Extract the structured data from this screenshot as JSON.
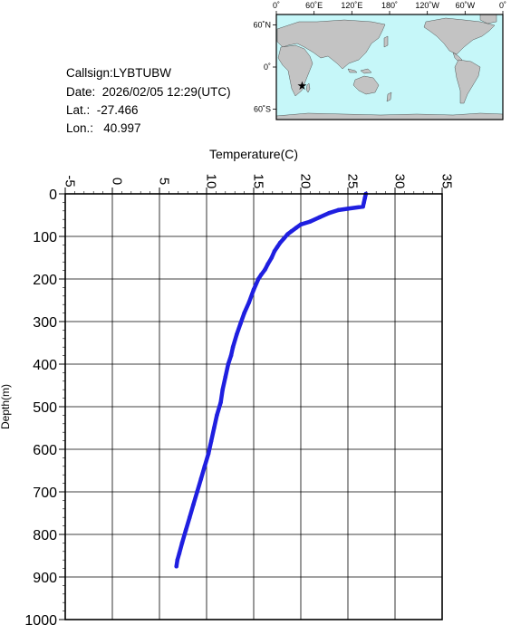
{
  "header": {
    "callsign": "Callsign:LYBTUBW",
    "date": "Date:  2026/02/05 12:29(UTC)",
    "lat": "Lat.:  -27.466",
    "lon": "Lon.:   40.997"
  },
  "map": {
    "lon_ticks": [
      "0˚",
      "60˚E",
      "120˚E",
      "180˚",
      "120˚W",
      "60˚W",
      "0˚"
    ],
    "lat_ticks": [
      "60˚N",
      "0˚",
      "60˚S"
    ],
    "marker": {
      "lat": -27.466,
      "lon": 40.997
    },
    "colors": {
      "ocean": "#c6f7f9",
      "land": "#c3c3c3",
      "marker": "#ff0000"
    }
  },
  "chart_data": {
    "type": "line",
    "xlabel": "Temperature(C)",
    "ylabel": "Depth(m)",
    "xlim": [
      -5,
      35
    ],
    "ylim": [
      1000,
      0
    ],
    "x_ticks": [
      "-5",
      "0",
      "5",
      "10",
      "15",
      "20",
      "25",
      "30",
      "35"
    ],
    "y_ticks": [
      "0",
      "100",
      "200",
      "300",
      "400",
      "500",
      "600",
      "700",
      "800",
      "900",
      "1000"
    ],
    "grid": true,
    "series": [
      {
        "color": "#1f1fe0",
        "points": [
          [
            26.9,
            0
          ],
          [
            26.8,
            10
          ],
          [
            26.7,
            20
          ],
          [
            26.6,
            30
          ],
          [
            25.0,
            35
          ],
          [
            24.0,
            38
          ],
          [
            23.0,
            45
          ],
          [
            22.0,
            55
          ],
          [
            21.0,
            65
          ],
          [
            20.0,
            72
          ],
          [
            19.5,
            80
          ],
          [
            19.0,
            88
          ],
          [
            18.6,
            95
          ],
          [
            18.2,
            105
          ],
          [
            17.8,
            115
          ],
          [
            17.5,
            125
          ],
          [
            17.2,
            135
          ],
          [
            16.9,
            150
          ],
          [
            16.5,
            165
          ],
          [
            16.2,
            178
          ],
          [
            15.8,
            190
          ],
          [
            15.5,
            200
          ],
          [
            15.0,
            225
          ],
          [
            14.5,
            255
          ],
          [
            14.0,
            280
          ],
          [
            13.6,
            305
          ],
          [
            13.2,
            330
          ],
          [
            12.8,
            360
          ],
          [
            12.6,
            380
          ],
          [
            12.3,
            400
          ],
          [
            12.0,
            430
          ],
          [
            11.7,
            460
          ],
          [
            11.5,
            490
          ],
          [
            11.1,
            520
          ],
          [
            10.8,
            550
          ],
          [
            10.5,
            580
          ],
          [
            10.2,
            610
          ],
          [
            9.8,
            640
          ],
          [
            9.4,
            670
          ],
          [
            9.0,
            700
          ],
          [
            8.6,
            730
          ],
          [
            8.2,
            760
          ],
          [
            7.8,
            790
          ],
          [
            7.4,
            820
          ],
          [
            7.1,
            845
          ],
          [
            6.9,
            860
          ],
          [
            6.8,
            875
          ]
        ]
      }
    ]
  }
}
